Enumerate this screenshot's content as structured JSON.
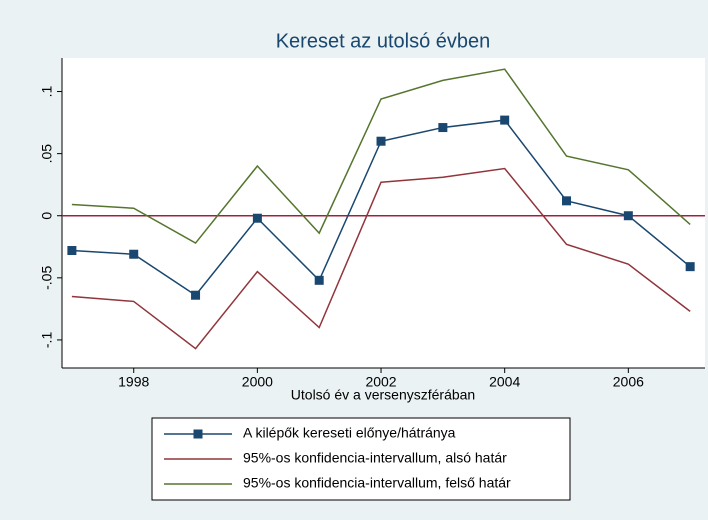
{
  "chart_data": {
    "type": "line",
    "title": "Kereset az utolsó évben",
    "x_label": "Utolsó év a versenyszférában",
    "x": [
      1997,
      1998,
      1999,
      2000,
      2001,
      2002,
      2003,
      2004,
      2005,
      2006,
      2007
    ],
    "series": [
      {
        "name": "A kilépők kereseti előnye/hátránya",
        "color": "#1a476f",
        "marker": "square",
        "values": [
          -0.028,
          -0.031,
          -0.064,
          -0.002,
          -0.052,
          0.06,
          0.071,
          0.077,
          0.012,
          0.0,
          -0.041
        ]
      },
      {
        "name": "95%-os konfidencia-intervallum, alsó határ",
        "color": "#90353b",
        "values": [
          -0.065,
          -0.069,
          -0.107,
          -0.045,
          -0.09,
          0.027,
          0.031,
          0.038,
          -0.023,
          -0.039,
          -0.077
        ]
      },
      {
        "name": "95%-os konfidencia-intervallum, felső határ",
        "color": "#55752f",
        "values": [
          0.009,
          0.006,
          -0.022,
          0.04,
          -0.014,
          0.094,
          0.109,
          0.118,
          0.048,
          0.037,
          -0.007
        ]
      }
    ],
    "reference_line": {
      "value": 0,
      "color": "#a0203c"
    },
    "xlim": [
      1996.84,
      2007.24
    ],
    "xticks": [
      1998,
      2000,
      2002,
      2004,
      2006
    ],
    "ylim": [
      -0.1226,
      0.127
    ],
    "yticks": [
      {
        "value": -0.1,
        "label": "-.1"
      },
      {
        "value": -0.05,
        "label": "-.05"
      },
      0,
      {
        "value": 0.05,
        "label": ".05"
      },
      {
        "value": 0.1,
        "label": ".1"
      }
    ],
    "legend": "bottom"
  }
}
